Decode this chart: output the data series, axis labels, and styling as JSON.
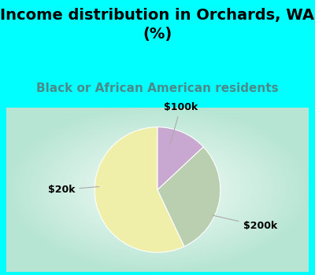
{
  "title": "Income distribution in Orchards, WA\n(%)",
  "subtitle": "Black or African American residents",
  "title_fontsize": 14,
  "subtitle_fontsize": 11,
  "title_color": "#000000",
  "subtitle_color": "#4a8a8a",
  "top_bg_color": "#00FFFF",
  "slices": [
    {
      "label": "$20k",
      "value": 57,
      "color": "#EFEFAA"
    },
    {
      "label": "$200k",
      "value": 30,
      "color": "#BACFB0"
    },
    {
      "label": "$100k",
      "value": 13,
      "color": "#C8A8D0"
    }
  ],
  "label_fontsize": 9,
  "label_color": "#000000",
  "startangle": 90,
  "figsize": [
    4.0,
    3.5
  ],
  "dpi": 100,
  "label_positions": {
    "$20k": [
      -1.45,
      0.0
    ],
    "$200k": [
      1.55,
      -0.55
    ],
    "$100k": [
      0.35,
      1.25
    ]
  },
  "label_wedge_points": {
    "$20k": [
      -0.85,
      0.05
    ],
    "$200k": [
      0.8,
      -0.38
    ],
    "$100k": [
      0.18,
      0.65
    ]
  }
}
